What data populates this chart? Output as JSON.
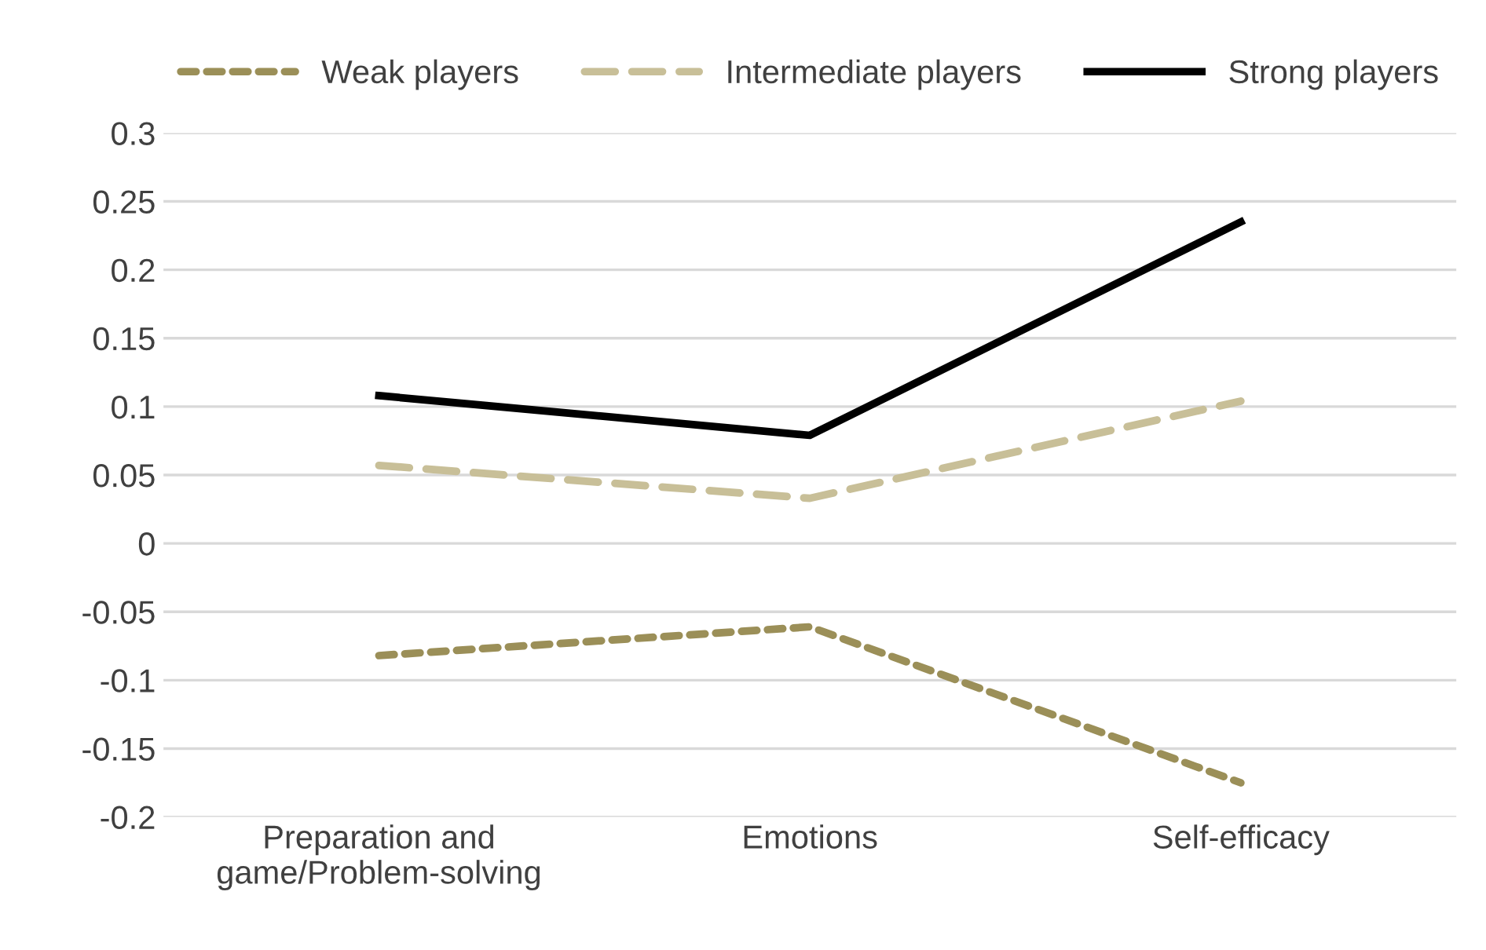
{
  "chart_data": {
    "type": "line",
    "categories": [
      "Preparation and\ngame/Problem-solving",
      "Emotions",
      "Self-efficacy"
    ],
    "series": [
      {
        "name": "Weak players",
        "color": "#9b8f58",
        "line_style": "dotted",
        "values": [
          -0.082,
          -0.061,
          -0.175
        ]
      },
      {
        "name": "Intermediate players",
        "color": "#c8bf98",
        "line_style": "dashed",
        "values": [
          0.057,
          0.033,
          0.104
        ]
      },
      {
        "name": "Strong players",
        "color": "#000000",
        "line_style": "solid",
        "values": [
          0.108,
          0.079,
          0.235
        ]
      }
    ],
    "ylim": [
      -0.2,
      0.3
    ],
    "yticks": [
      -0.2,
      -0.15,
      -0.1,
      -0.05,
      0,
      0.05,
      0.1,
      0.15,
      0.2,
      0.25,
      0.3
    ],
    "grid": "y",
    "legend": "top",
    "marker": "none"
  }
}
